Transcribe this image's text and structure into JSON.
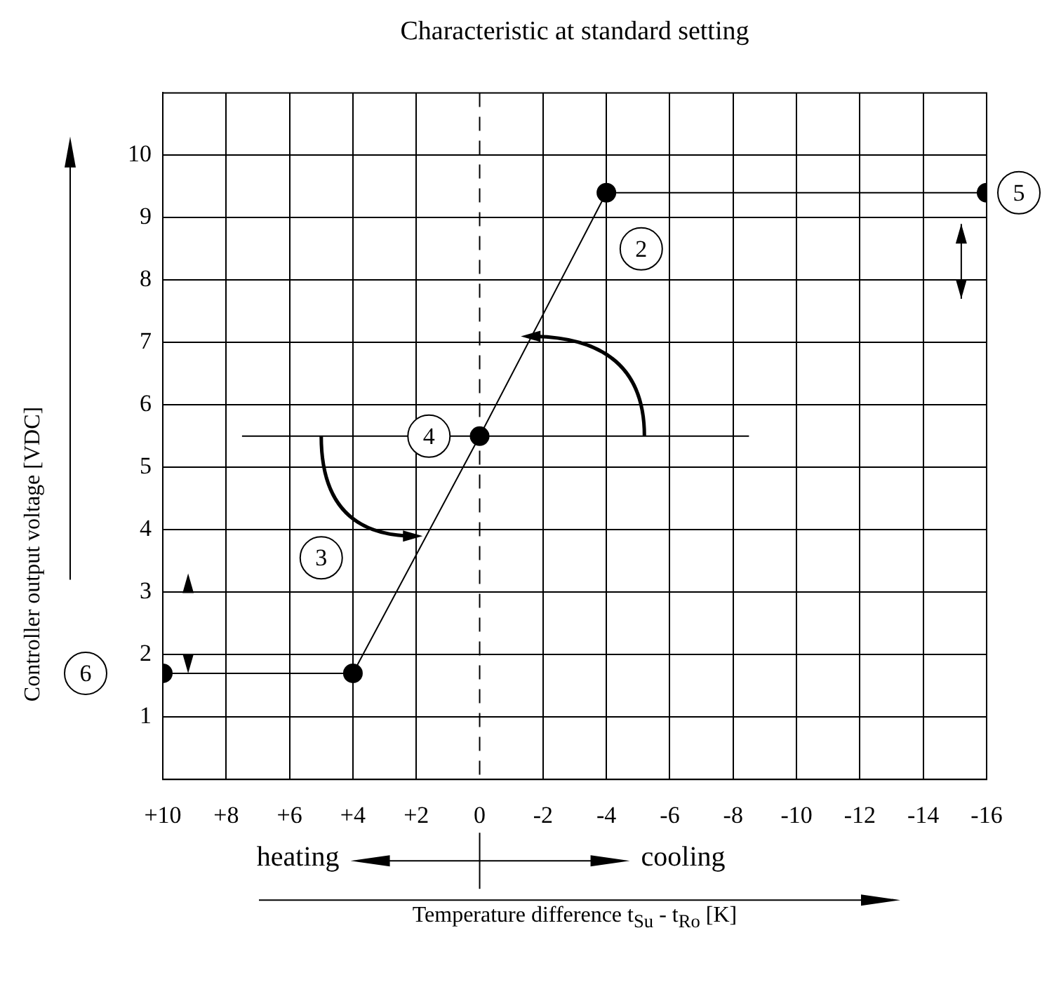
{
  "chart_data": {
    "type": "line",
    "title": "Characteristic at standard setting",
    "xlabel": "Temperature difference t$_{Su}$ - t$_{Ro}$ [K]",
    "ylabel": "Controller output voltage [VDC]",
    "xlim": [
      10,
      -16
    ],
    "xticks": [
      {
        "value": 10,
        "label": "+10"
      },
      {
        "value": 8,
        "label": "+8"
      },
      {
        "value": 6,
        "label": "+6"
      },
      {
        "value": 4,
        "label": "+4"
      },
      {
        "value": 2,
        "label": "+2"
      },
      0,
      -2,
      -4,
      -6,
      -8,
      -10,
      -12,
      -14,
      -16
    ],
    "ylim": [
      0,
      11
    ],
    "yticks": [
      1,
      2,
      3,
      4,
      5,
      6,
      7,
      8,
      9,
      10
    ],
    "grid": true,
    "marker": "circle",
    "series": [
      {
        "color": "#000000",
        "x": [
          10,
          4,
          0,
          -4,
          -16
        ],
        "values": [
          1.7,
          1.7,
          5.5,
          9.4,
          9.4
        ]
      },
      {
        "color": "#000000",
        "marker": "none",
        "x": [
          7.5,
          -8.5
        ],
        "values": [
          5.5,
          5.5
        ]
      }
    ],
    "ref_lines": [
      {
        "axis": "x",
        "value": 0,
        "line_style": "dashed",
        "color": "#000000"
      }
    ],
    "annotations": [
      {
        "text": "2",
        "x": -5.1,
        "y": 8.5
      },
      {
        "text": "3",
        "x": 5,
        "y": 3.55
      },
      {
        "text": "4",
        "x": 1.6,
        "y": 5.5
      },
      {
        "text": "5",
        "x": -16,
        "y": 9.4
      },
      {
        "text": "6",
        "x": 10,
        "y": 1.7
      },
      "heating",
      "cooling"
    ]
  }
}
